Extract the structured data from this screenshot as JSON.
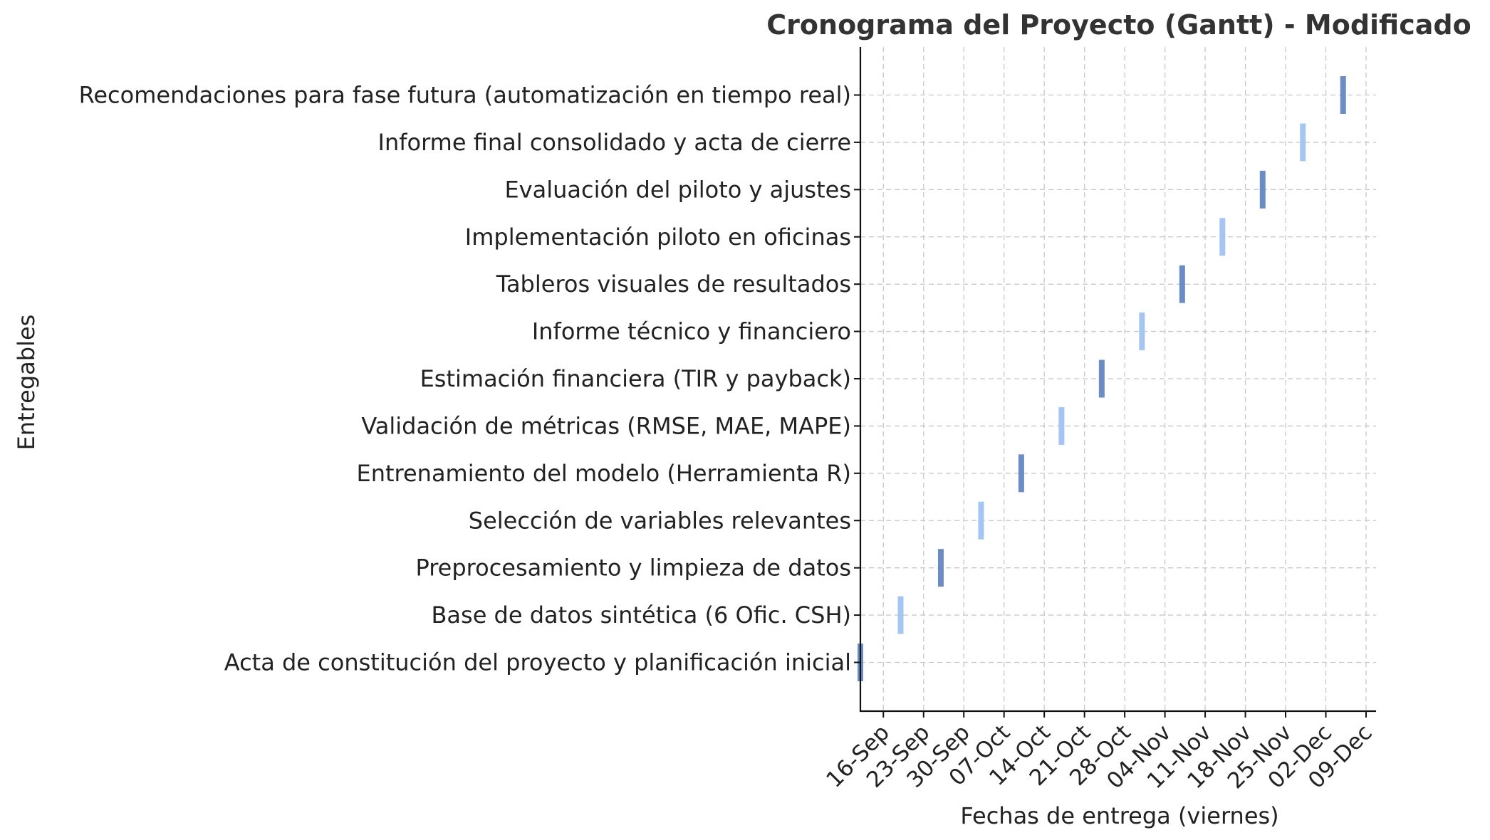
{
  "chart_data": {
    "type": "gantt",
    "title": "Cronograma del Proyecto (Gantt) - Modificado",
    "xlabel": "Fechas de entrega (viernes)",
    "ylabel": "Entregables",
    "grid": true,
    "xlim": [
      "2025-09-12",
      "2025-12-09"
    ],
    "x_ticks": [
      "2025-09-16",
      "2025-09-23",
      "2025-09-30",
      "2025-10-07",
      "2025-10-14",
      "2025-10-21",
      "2025-10-28",
      "2025-11-04",
      "2025-11-11",
      "2025-11-18",
      "2025-11-25",
      "2025-12-02",
      "2025-12-09"
    ],
    "x_tick_labels": [
      "16-Sep",
      "23-Sep",
      "30-Sep",
      "07-Oct",
      "14-Oct",
      "21-Oct",
      "28-Oct",
      "04-Nov",
      "11-Nov",
      "18-Nov",
      "25-Nov",
      "02-Dec",
      "09-Dec"
    ],
    "colors": {
      "dark": "#6b8cc4",
      "light": "#a6c5f2"
    },
    "tasks": [
      {
        "name": "Acta de constitución del proyecto y planificación inicial",
        "date": "2025-09-12",
        "color": "dark"
      },
      {
        "name": "Base de datos sintética (6 Ofic. CSH)",
        "date": "2025-09-19",
        "color": "light"
      },
      {
        "name": "Preprocesamiento y limpieza de datos",
        "date": "2025-09-26",
        "color": "dark"
      },
      {
        "name": "Selección de variables relevantes",
        "date": "2025-10-03",
        "color": "light"
      },
      {
        "name": "Entrenamiento del modelo (Herramienta R)",
        "date": "2025-10-10",
        "color": "dark"
      },
      {
        "name": "Validación de métricas (RMSE, MAE, MAPE)",
        "date": "2025-10-17",
        "color": "light"
      },
      {
        "name": "Estimación financiera (TIR y payback)",
        "date": "2025-10-24",
        "color": "dark"
      },
      {
        "name": "Informe técnico y financiero",
        "date": "2025-10-31",
        "color": "light"
      },
      {
        "name": "Tableros visuales de resultados",
        "date": "2025-11-07",
        "color": "dark"
      },
      {
        "name": "Implementación piloto en oficinas",
        "date": "2025-11-14",
        "color": "light"
      },
      {
        "name": "Evaluación del piloto y ajustes",
        "date": "2025-11-21",
        "color": "dark"
      },
      {
        "name": "Informe final consolidado y acta de cierre",
        "date": "2025-11-28",
        "color": "light"
      },
      {
        "name": "Recomendaciones para fase futura (automatización en tiempo real)",
        "date": "2025-12-05",
        "color": "dark"
      }
    ]
  }
}
